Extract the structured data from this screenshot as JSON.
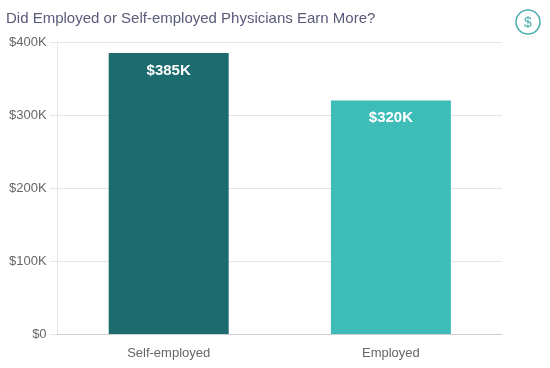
{
  "chart_data": {
    "type": "bar",
    "title": "Did Employed or Self-employed Physicians Earn More?",
    "categories": [
      "Self-employed",
      "Employed"
    ],
    "values": [
      385000,
      320000
    ],
    "value_labels": [
      "$385K",
      "$320K"
    ],
    "data_labels": true,
    "colors": [
      "#1c6b6e",
      "#3dbcb8"
    ],
    "ylim": [
      0,
      400000
    ],
    "yticks": [
      {
        "value": 0,
        "label": "$0"
      },
      {
        "value": 100000,
        "label": "$100K"
      },
      {
        "value": 200000,
        "label": "$200K"
      },
      {
        "value": 300000,
        "label": "$300K"
      },
      {
        "value": 400000,
        "label": "$400K"
      }
    ],
    "grid": true,
    "annotations": [
      "$"
    ]
  }
}
